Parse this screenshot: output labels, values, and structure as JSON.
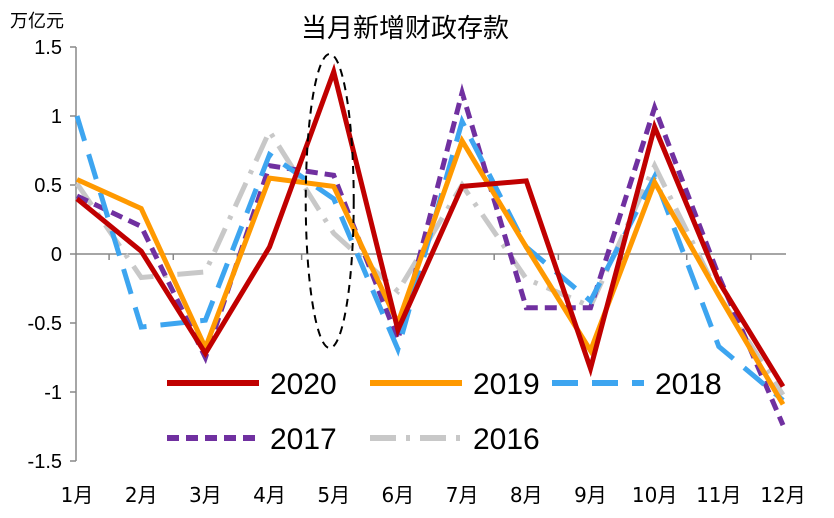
{
  "chart_data": {
    "type": "line",
    "title": "当月新增财政存款",
    "ylabel": "万亿元",
    "xlabel": "",
    "categories": [
      "1月",
      "2月",
      "3月",
      "4月",
      "5月",
      "6月",
      "7月",
      "8月",
      "9月",
      "10月",
      "11月",
      "12月"
    ],
    "ylim": [
      -1.5,
      1.5
    ],
    "yticks": [
      1.5,
      1,
      0.5,
      0,
      -0.5,
      -1,
      -1.5
    ],
    "ytick_labels": [
      "1.5",
      "1",
      "0.5",
      "0",
      "-0.5",
      "-1",
      "-1.5"
    ],
    "grid": false,
    "legend_position": "bottom-inside",
    "series": [
      {
        "name": "2020",
        "color": "#C00000",
        "style": "solid",
        "values": [
          0.4,
          0.02,
          -0.72,
          0.05,
          1.32,
          -0.55,
          0.49,
          0.53,
          -0.83,
          0.92,
          -0.2,
          -0.96
        ]
      },
      {
        "name": "2019",
        "color": "#FF9900",
        "style": "solid",
        "values": [
          0.54,
          0.33,
          -0.68,
          0.55,
          0.49,
          -0.5,
          0.82,
          0.05,
          -0.7,
          0.52,
          -0.3,
          -1.09
        ]
      },
      {
        "name": "2018",
        "color": "#3DA5F0",
        "style": "longdash",
        "values": [
          1.0,
          -0.53,
          -0.48,
          0.72,
          0.4,
          -0.69,
          0.96,
          0.05,
          -0.34,
          0.56,
          -0.67,
          -1.06
        ]
      },
      {
        "name": "2017",
        "color": "#7030A0",
        "style": "dash",
        "values": [
          0.42,
          0.2,
          -0.75,
          0.64,
          0.57,
          -0.62,
          1.17,
          -0.39,
          -0.39,
          1.06,
          -0.16,
          -1.24
        ]
      },
      {
        "name": "2016",
        "color": "#C8C8C8",
        "style": "dashdot",
        "values": [
          0.51,
          -0.17,
          -0.13,
          0.89,
          0.15,
          -0.27,
          0.5,
          -0.18,
          -0.38,
          0.64,
          -0.3,
          -1.02
        ]
      }
    ]
  }
}
